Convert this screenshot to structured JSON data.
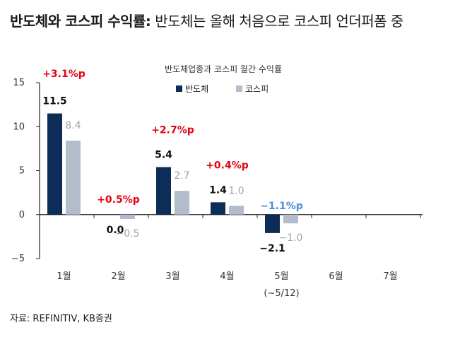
{
  "headline": {
    "bold": "반도체와 코스피 수익률:",
    "rest": " 반도체는 올해 처음으로 코스피 언더퍼폼 중"
  },
  "source": "자료: REFINITIV, KB증권",
  "colors": {
    "semis": "#0b2d57",
    "kospi": "#b2bccb",
    "positive_diff": "#e60012",
    "negative_diff": "#4a90d9",
    "axis": "#222222"
  },
  "chart_data": {
    "type": "bar",
    "title": "반도체업종과 코스피 월간 수익률",
    "categories": [
      "1월",
      "2월",
      "3월",
      "4월",
      "5월",
      "6월",
      "7월"
    ],
    "category_notes": [
      "",
      "",
      "",
      "",
      "(~5/12)",
      "",
      ""
    ],
    "series": [
      {
        "name": "반도체",
        "values": [
          11.5,
          0.0,
          5.4,
          1.4,
          -2.1,
          null,
          null
        ],
        "labels": [
          "11.5",
          "0.0",
          "5.4",
          "1.4",
          "−2.1",
          "",
          ""
        ]
      },
      {
        "name": "코스피",
        "values": [
          8.4,
          -0.5,
          2.7,
          1.0,
          -1.0,
          null,
          null
        ],
        "labels": [
          "8.4",
          "−0.5",
          "2.7",
          "1.0",
          "−1.0",
          "",
          ""
        ]
      }
    ],
    "differences": [
      3.1,
      0.5,
      2.7,
      0.4,
      -1.1,
      null,
      null
    ],
    "difference_labels": [
      "+3.1%p",
      "+0.5%p",
      "+2.7%p",
      "+0.4%p",
      "−1.1%p",
      "",
      ""
    ],
    "yticks": [
      15,
      10,
      5,
      0,
      -5
    ],
    "ytick_labels": [
      "15",
      "10",
      "5",
      "0",
      "−5"
    ],
    "ylim": [
      -5,
      15
    ],
    "legend_placement": "top-center",
    "grid": false
  }
}
